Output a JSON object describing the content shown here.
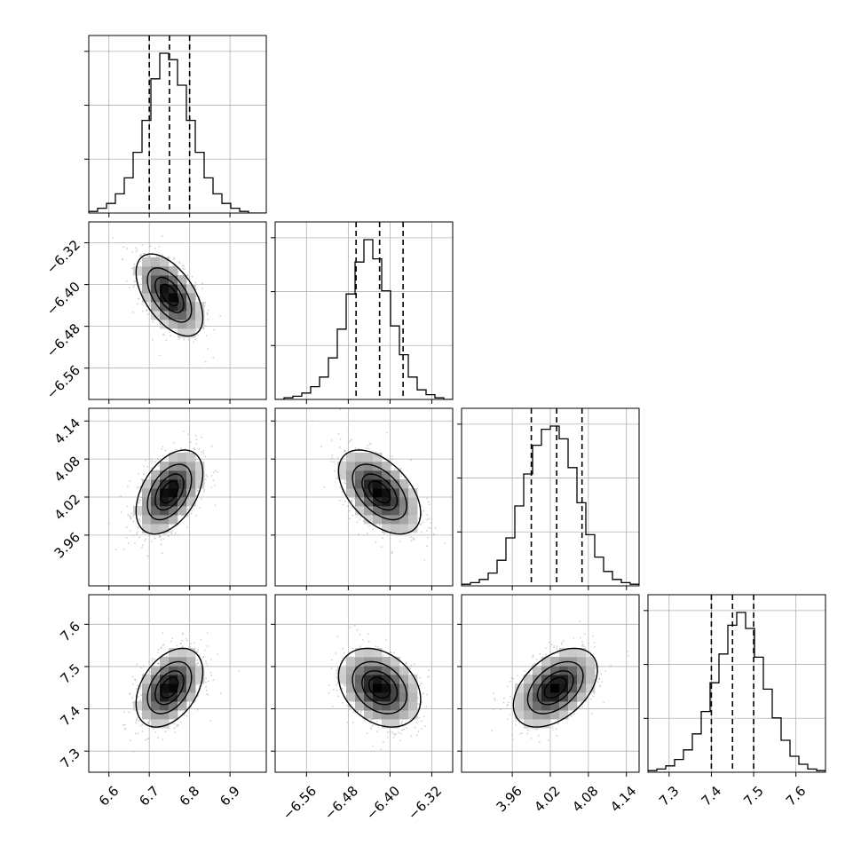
{
  "chart_data": {
    "type": "corner",
    "parameters": [
      {
        "label": "",
        "mean": 6.75,
        "sd": 0.04,
        "quantiles": [
          6.7,
          6.75,
          6.8
        ],
        "range": [
          6.55,
          6.99
        ],
        "ticks": [
          6.6,
          6.7,
          6.8,
          6.9
        ],
        "tick_labels": [
          "6.6",
          "6.7",
          "6.8",
          "6.9"
        ],
        "hist_counts": [
          1,
          3,
          6,
          12,
          22,
          38,
          58,
          84,
          100,
          96,
          80,
          58,
          38,
          22,
          12,
          6,
          3,
          1,
          0,
          0
        ]
      },
      {
        "label": "",
        "mean": -6.42,
        "sd": 0.038,
        "quantiles": [
          -6.465,
          -6.42,
          -6.375
        ],
        "range": [
          -6.62,
          -6.28
        ],
        "ticks": [
          -6.56,
          -6.48,
          -6.4,
          -6.32
        ],
        "tick_labels": [
          "−6.56",
          "−6.48",
          "−6.40",
          "−6.32"
        ],
        "hist_counts": [
          0,
          1,
          2,
          4,
          8,
          14,
          26,
          44,
          66,
          86,
          100,
          88,
          68,
          46,
          28,
          14,
          6,
          3,
          1,
          0
        ]
      },
      {
        "label": "",
        "mean": 4.028,
        "sd": 0.032,
        "quantiles": [
          3.99,
          4.03,
          4.07
        ],
        "range": [
          3.88,
          4.16
        ],
        "ticks": [
          3.96,
          4.02,
          4.08,
          4.14
        ],
        "tick_labels": [
          "3.96",
          "4.02",
          "4.08",
          "4.14"
        ],
        "hist_counts": [
          1,
          2,
          4,
          8,
          16,
          30,
          50,
          70,
          88,
          98,
          100,
          92,
          74,
          52,
          32,
          18,
          9,
          4,
          2,
          1
        ]
      },
      {
        "label": "",
        "mean": 7.45,
        "sd": 0.045,
        "quantiles": [
          7.4,
          7.45,
          7.5
        ],
        "range": [
          7.25,
          7.67
        ],
        "ticks": [
          7.3,
          7.4,
          7.5,
          7.6
        ],
        "tick_labels": [
          "7.3",
          "7.4",
          "7.5",
          "7.6"
        ],
        "hist_counts": [
          1,
          2,
          4,
          8,
          14,
          24,
          38,
          56,
          74,
          92,
          100,
          90,
          72,
          52,
          34,
          20,
          10,
          5,
          2,
          1
        ]
      }
    ],
    "correlations": [
      [
        1.0,
        -0.55,
        0.45,
        0.4
      ],
      [
        -0.55,
        1.0,
        -0.5,
        -0.3
      ],
      [
        0.45,
        -0.5,
        1.0,
        0.45
      ],
      [
        0.4,
        -0.3,
        0.45,
        1.0
      ]
    ],
    "contour_levels_sigma": [
      0.5,
      1.0,
      1.5,
      2.0
    ],
    "quantiles_shown": [
      0.16,
      0.5,
      0.84
    ],
    "grid": true,
    "colors": {
      "line": "#000000",
      "grid": "#b0b0b0",
      "scatter": "#aaaaaa"
    }
  }
}
